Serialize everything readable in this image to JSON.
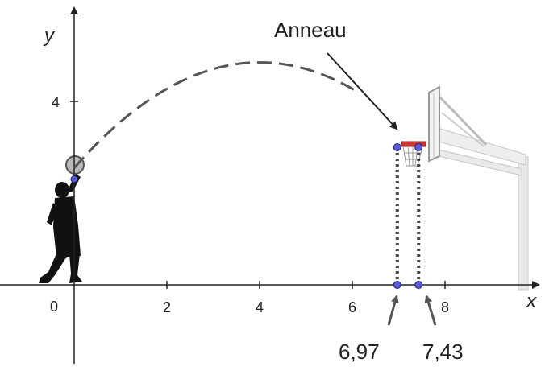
{
  "axes": {
    "x_label": "x",
    "y_label": "y",
    "origin_label": "0",
    "x_ticks": [
      {
        "value": 2,
        "label": "2"
      },
      {
        "value": 4,
        "label": "4"
      },
      {
        "value": 6,
        "label": "6"
      },
      {
        "value": 8,
        "label": "8"
      }
    ],
    "y_ticks": [
      {
        "value": 4,
        "label": "4"
      }
    ]
  },
  "trajectory": {
    "type": "parabola-dashed",
    "x_start": 0,
    "y_start": 2.55,
    "x_vertex": 4,
    "y_vertex": 4.85,
    "x_end": 6.15
  },
  "ring": {
    "label": "Anneau",
    "x_left": 6.97,
    "x_right": 7.43,
    "height": 3,
    "left_value_label": "6,97",
    "right_value_label": "7,43"
  },
  "colors": {
    "axis": "#222222",
    "trajectory": "#555555",
    "point_fill": "#5a5ad6",
    "point_stroke": "#1e1e70",
    "dotted": "#444444",
    "player": "#111111",
    "ball_fill": "#b8b8b8",
    "backboard": "#e6e6e6"
  },
  "icons": {
    "player": "basketball-player-icon",
    "hoop": "basketball-hoop-icon"
  }
}
